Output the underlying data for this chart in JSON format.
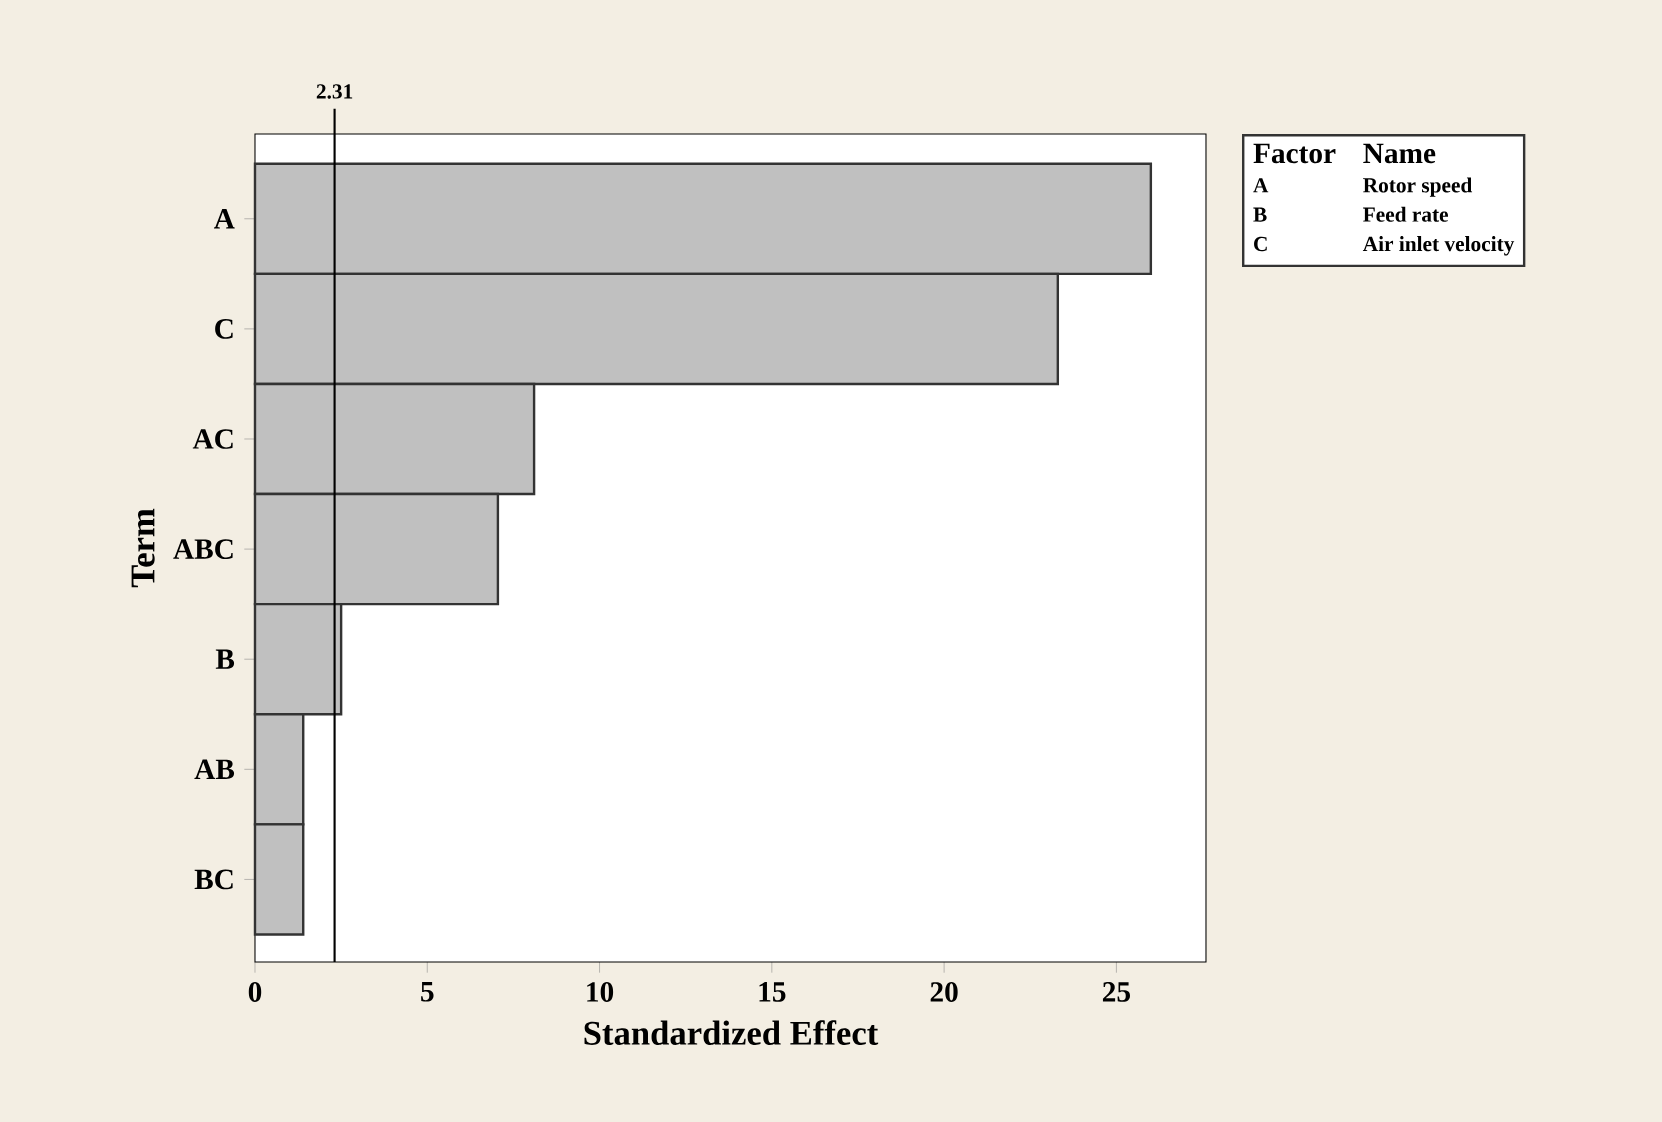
{
  "chart_data": {
    "type": "bar",
    "orientation": "horizontal",
    "categories": [
      "A",
      "C",
      "AC",
      "ABC",
      "B",
      "AB",
      "BC"
    ],
    "values": [
      26.0,
      23.3,
      8.1,
      7.05,
      2.5,
      1.4,
      1.4
    ],
    "color": "#c0c0c0",
    "xlim": [
      0,
      27.6
    ],
    "xticks": [
      0,
      5,
      10,
      15,
      20,
      25
    ],
    "xlabel": "Standardized Effect",
    "ylabel": "Term",
    "ref_lines": [
      {
        "axis": "x",
        "value": 2.31,
        "label": "2.31"
      }
    ],
    "annotations": [
      "Factor",
      "Name",
      "A",
      "Rotor speed",
      "B",
      "Feed rate",
      "C",
      "Air inlet velocity"
    ]
  }
}
